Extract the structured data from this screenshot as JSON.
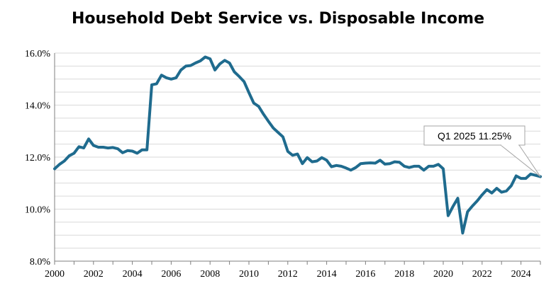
{
  "chart_data": {
    "type": "line",
    "title": "Household Debt Service vs. Disposable Income",
    "xlabel": "",
    "ylabel": "",
    "xlim": [
      2000,
      2025
    ],
    "ylim": [
      8.0,
      16.0
    ],
    "x_ticks": [
      2000,
      2002,
      2004,
      2006,
      2008,
      2010,
      2012,
      2014,
      2016,
      2018,
      2020,
      2022,
      2024
    ],
    "x_tick_labels": [
      "2000",
      "2002",
      "2004",
      "2006",
      "2008",
      "2010",
      "2012",
      "2014",
      "2016",
      "2018",
      "2020",
      "2022",
      "2024"
    ],
    "y_ticks": [
      8,
      10,
      12,
      14,
      16
    ],
    "y_tick_labels": [
      "8.0%",
      "10.0%",
      "12.0%",
      "14.0%",
      "16.0%"
    ],
    "grid": "horizontal",
    "line_color": "#1F6B8E",
    "series": [
      {
        "name": "",
        "x": [
          2000.0,
          2000.25,
          2000.5,
          2000.75,
          2001.0,
          2001.25,
          2001.5,
          2001.75,
          2002.0,
          2002.25,
          2002.5,
          2002.75,
          2003.0,
          2003.25,
          2003.5,
          2003.75,
          2004.0,
          2004.25,
          2004.5,
          2004.75,
          2005.0,
          2005.25,
          2005.5,
          2005.75,
          2006.0,
          2006.25,
          2006.5,
          2006.75,
          2007.0,
          2007.25,
          2007.5,
          2007.75,
          2008.0,
          2008.25,
          2008.5,
          2008.75,
          2009.0,
          2009.25,
          2009.5,
          2009.75,
          2010.0,
          2010.25,
          2010.5,
          2010.75,
          2011.0,
          2011.25,
          2011.5,
          2011.75,
          2012.0,
          2012.25,
          2012.5,
          2012.75,
          2013.0,
          2013.25,
          2013.5,
          2013.75,
          2014.0,
          2014.25,
          2014.5,
          2014.75,
          2015.0,
          2015.25,
          2015.5,
          2015.75,
          2016.0,
          2016.25,
          2016.5,
          2016.75,
          2017.0,
          2017.25,
          2017.5,
          2017.75,
          2018.0,
          2018.25,
          2018.5,
          2018.75,
          2019.0,
          2019.25,
          2019.5,
          2019.75,
          2020.0,
          2020.25,
          2020.5,
          2020.75,
          2021.0,
          2021.25,
          2021.5,
          2021.75,
          2022.0,
          2022.25,
          2022.5,
          2022.75,
          2023.0,
          2023.25,
          2023.5,
          2023.75,
          2024.0,
          2024.25,
          2024.5,
          2024.75,
          2025.0
        ],
        "values": [
          11.55,
          11.72,
          11.85,
          12.05,
          12.15,
          12.4,
          12.35,
          12.7,
          12.45,
          12.38,
          12.38,
          12.35,
          12.37,
          12.32,
          12.17,
          12.25,
          12.23,
          12.15,
          12.28,
          12.28,
          14.78,
          14.82,
          15.15,
          15.05,
          15.0,
          15.05,
          15.35,
          15.5,
          15.52,
          15.62,
          15.7,
          15.85,
          15.78,
          15.35,
          15.58,
          15.72,
          15.62,
          15.28,
          15.1,
          14.9,
          14.48,
          14.08,
          13.95,
          13.65,
          13.38,
          13.12,
          12.95,
          12.78,
          12.22,
          12.07,
          12.12,
          11.75,
          11.98,
          11.82,
          11.85,
          11.98,
          11.88,
          11.63,
          11.68,
          11.65,
          11.58,
          11.5,
          11.6,
          11.75,
          11.77,
          11.78,
          11.77,
          11.88,
          11.73,
          11.75,
          11.82,
          11.8,
          11.65,
          11.6,
          11.65,
          11.65,
          11.5,
          11.65,
          11.65,
          11.72,
          11.55,
          9.75,
          10.1,
          10.42,
          9.08,
          9.9,
          10.12,
          10.32,
          10.55,
          10.75,
          10.62,
          10.8,
          10.65,
          10.7,
          10.9,
          11.28,
          11.18,
          11.18,
          11.35,
          11.3,
          11.25
        ]
      }
    ],
    "annotations": [
      {
        "text": "Q1 2025 11.25%",
        "x": 2025.0,
        "y": 11.25
      }
    ]
  }
}
